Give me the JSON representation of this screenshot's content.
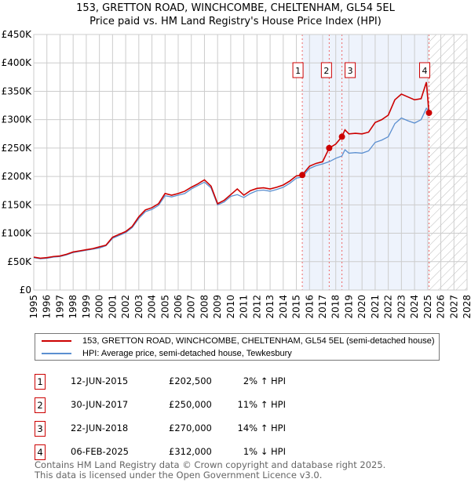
{
  "chart_data": {
    "type": "line",
    "title": "153, GRETTON ROAD, WINCHCOMBE, CHELTENHAM, GL54 5EL",
    "subtitle": "Price paid vs. HM Land Registry's House Price Index (HPI)",
    "xlim": [
      1995,
      2028
    ],
    "ylim": [
      0,
      450000
    ],
    "x_ticks": [
      "1995",
      "1996",
      "1997",
      "1998",
      "1999",
      "2000",
      "2001",
      "2002",
      "2003",
      "2004",
      "2005",
      "2006",
      "2007",
      "2008",
      "2009",
      "2010",
      "2011",
      "2012",
      "2013",
      "2014",
      "2015",
      "2016",
      "2017",
      "2018",
      "2019",
      "2020",
      "2021",
      "2022",
      "2023",
      "2024",
      "2025",
      "2026",
      "2027",
      "2028"
    ],
    "y_ticks": [
      {
        "v": 0,
        "label": "£0"
      },
      {
        "v": 50000,
        "label": "£50K"
      },
      {
        "v": 100000,
        "label": "£100K"
      },
      {
        "v": 150000,
        "label": "£150K"
      },
      {
        "v": 200000,
        "label": "£200K"
      },
      {
        "v": 250000,
        "label": "£250K"
      },
      {
        "v": 300000,
        "label": "£300K"
      },
      {
        "v": 350000,
        "label": "£350K"
      },
      {
        "v": 400000,
        "label": "£400K"
      },
      {
        "v": 450000,
        "label": "£450K"
      }
    ],
    "grid": true,
    "shaded_range": [
      2015.45,
      2025.1
    ],
    "forecast_hatch_from": 2025.1,
    "x": [
      1995,
      1995.5,
      1996,
      1996.5,
      1997,
      1997.5,
      1998,
      1998.5,
      1999,
      1999.5,
      2000,
      2000.5,
      2001,
      2001.5,
      2002,
      2002.5,
      2003,
      2003.5,
      2004,
      2004.5,
      2005,
      2005.5,
      2006,
      2006.5,
      2007,
      2007.5,
      2008,
      2008.5,
      2009,
      2009.5,
      2010,
      2010.5,
      2011,
      2011.5,
      2012,
      2012.5,
      2013,
      2013.5,
      2014,
      2014.5,
      2015,
      2015.45,
      2016,
      2016.5,
      2017,
      2017.5,
      2018,
      2018.47,
      2018.7,
      2019,
      2019.5,
      2020,
      2020.5,
      2021,
      2021.5,
      2022,
      2022.5,
      2023,
      2023.5,
      2024,
      2024.5,
      2024.9,
      2025.1
    ],
    "series": [
      {
        "name": "HPI: Average price, semi-detached house, Tewkesbury",
        "color": "#5b8fd0",
        "values": [
          57000,
          55000,
          56000,
          58000,
          59000,
          62000,
          66000,
          68000,
          70000,
          72000,
          74000,
          78000,
          91000,
          96000,
          101000,
          110000,
          126000,
          138000,
          142000,
          149000,
          166000,
          164000,
          167000,
          170000,
          178000,
          184000,
          190000,
          180000,
          150000,
          155000,
          165000,
          168000,
          163000,
          170000,
          175000,
          176000,
          174000,
          177000,
          181000,
          188000,
          197000,
          199000,
          214000,
          219000,
          222000,
          226000,
          232000,
          236000,
          247000,
          241000,
          242000,
          241000,
          245000,
          260000,
          264000,
          270000,
          293000,
          303000,
          298000,
          294000,
          300000,
          320000,
          315000
        ]
      },
      {
        "name": "153, GRETTON ROAD, WINCHCOMBE, CHELTENHAM, GL54 5EL (semi-detached house)",
        "color": "#cc0000",
        "values": [
          58000,
          56000,
          57000,
          59000,
          60000,
          63000,
          67000,
          69000,
          71000,
          73000,
          76000,
          79000,
          93000,
          98000,
          103000,
          112000,
          129000,
          141000,
          145000,
          152000,
          170000,
          167000,
          170000,
          174000,
          181000,
          187000,
          194000,
          183000,
          152000,
          158000,
          168000,
          178000,
          167000,
          175000,
          179000,
          180000,
          178000,
          181000,
          185000,
          192000,
          201000,
          202500,
          218000,
          223000,
          226000,
          250000,
          257000,
          270000,
          282000,
          275000,
          276000,
          275000,
          278000,
          295000,
          300000,
          308000,
          335000,
          345000,
          340000,
          335000,
          337000,
          366000,
          312000
        ]
      }
    ],
    "sales": [
      {
        "label": "1",
        "x": 2015.45,
        "price": 202500
      },
      {
        "label": "2",
        "x": 2017.5,
        "price": 250000
      },
      {
        "label": "3",
        "x": 2018.47,
        "price": 270000
      },
      {
        "label": "4",
        "x": 2025.1,
        "price": 312000
      }
    ]
  },
  "legend": {
    "property": "153, GRETTON ROAD, WINCHCOMBE, CHELTENHAM, GL54 5EL (semi-detached house)",
    "hpi": "HPI: Average price, semi-detached house, Tewkesbury"
  },
  "table": [
    {
      "n": "1",
      "date": "12-JUN-2015",
      "price": "£202,500",
      "delta": "2% ↑ HPI"
    },
    {
      "n": "2",
      "date": "30-JUN-2017",
      "price": "£250,000",
      "delta": "11% ↑ HPI"
    },
    {
      "n": "3",
      "date": "22-JUN-2018",
      "price": "£270,000",
      "delta": "14% ↑ HPI"
    },
    {
      "n": "4",
      "date": "06-FEB-2025",
      "price": "£312,000",
      "delta": "1% ↓ HPI"
    }
  ],
  "footer": {
    "line1": "Contains HM Land Registry data © Crown copyright and database right 2025.",
    "line2": "This data is licensed under the Open Government Licence v3.0."
  }
}
